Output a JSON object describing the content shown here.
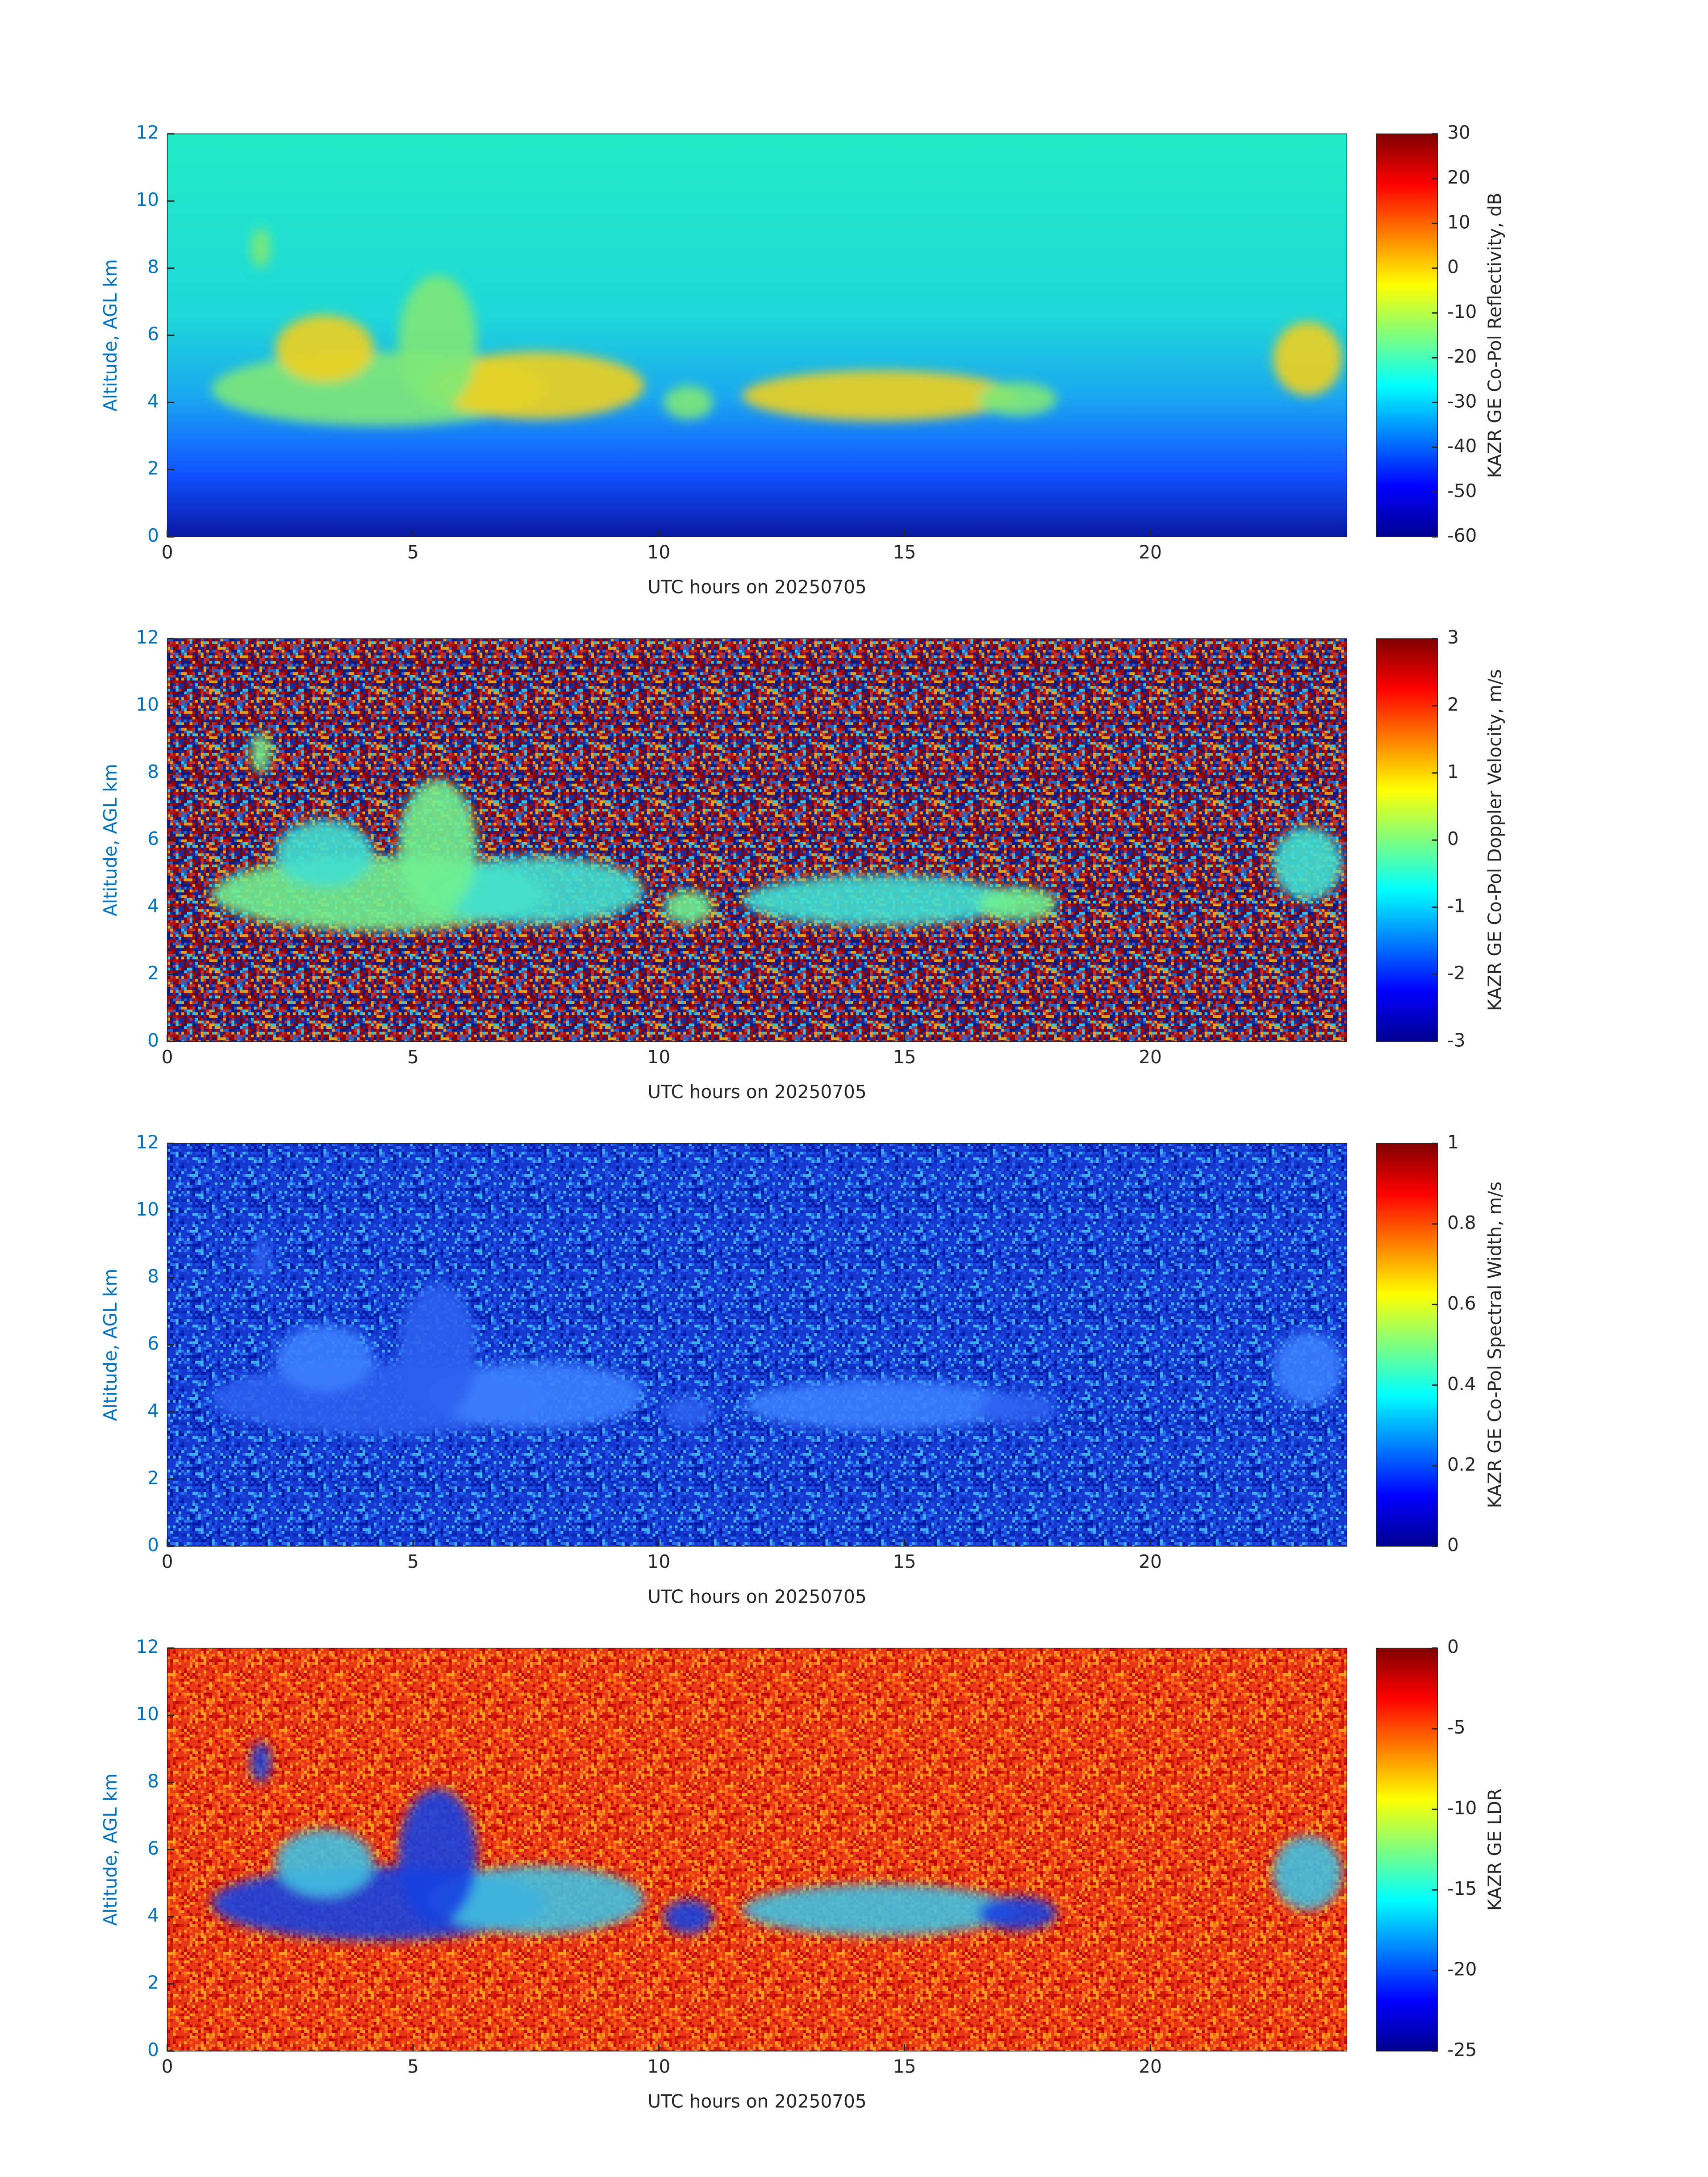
{
  "chart_data": [
    {
      "type": "heatmap",
      "xlabel": "UTC hours on 20250705",
      "ylabel": "Altitude, AGL km",
      "xlim": [
        0,
        24
      ],
      "xticks": [
        0,
        5,
        10,
        15,
        20
      ],
      "ylim": [
        0,
        12
      ],
      "yticks": [
        0,
        2,
        4,
        6,
        8,
        10,
        12
      ],
      "colormap": "jet",
      "colorbar": {
        "label": "KAZR GE Co-Pol Reflectivity, dB",
        "lim": [
          -60,
          30
        ],
        "ticks": [
          -60,
          -50,
          -40,
          -30,
          -20,
          -10,
          0,
          10,
          20,
          30
        ]
      }
    },
    {
      "type": "heatmap",
      "xlabel": "UTC hours on 20250705",
      "ylabel": "Altitude, AGL km",
      "xlim": [
        0,
        24
      ],
      "xticks": [
        0,
        5,
        10,
        15,
        20
      ],
      "ylim": [
        0,
        12
      ],
      "yticks": [
        0,
        2,
        4,
        6,
        8,
        10,
        12
      ],
      "colormap": "jet",
      "colorbar": {
        "label": "KAZR GE Co-Pol Doppler Velocity, m/s",
        "lim": [
          -3,
          3
        ],
        "ticks": [
          -3,
          -2,
          -1,
          0,
          1,
          2,
          3
        ]
      }
    },
    {
      "type": "heatmap",
      "xlabel": "UTC hours on 20250705",
      "ylabel": "Altitude, AGL km",
      "xlim": [
        0,
        24
      ],
      "xticks": [
        0,
        5,
        10,
        15,
        20
      ],
      "ylim": [
        0,
        12
      ],
      "yticks": [
        0,
        2,
        4,
        6,
        8,
        10,
        12
      ],
      "colormap": "jet",
      "colorbar": {
        "label": "KAZR GE Co-Pol Spectral Width, m/s",
        "lim": [
          0,
          1
        ],
        "ticks": [
          0,
          0.2,
          0.4,
          0.6,
          0.8,
          1
        ]
      }
    },
    {
      "type": "heatmap",
      "xlabel": "UTC hours on 20250705",
      "ylabel": "Altitude, AGL km",
      "xlim": [
        0,
        24
      ],
      "xticks": [
        0,
        5,
        10,
        15,
        20
      ],
      "ylim": [
        0,
        12
      ],
      "yticks": [
        0,
        2,
        4,
        6,
        8,
        10,
        12
      ],
      "colormap": "jet",
      "colorbar": {
        "label": "KAZR GE LDR",
        "lim": [
          -25,
          0
        ],
        "ticks": [
          -25,
          -20,
          -15,
          -10,
          -5,
          0
        ]
      }
    }
  ]
}
